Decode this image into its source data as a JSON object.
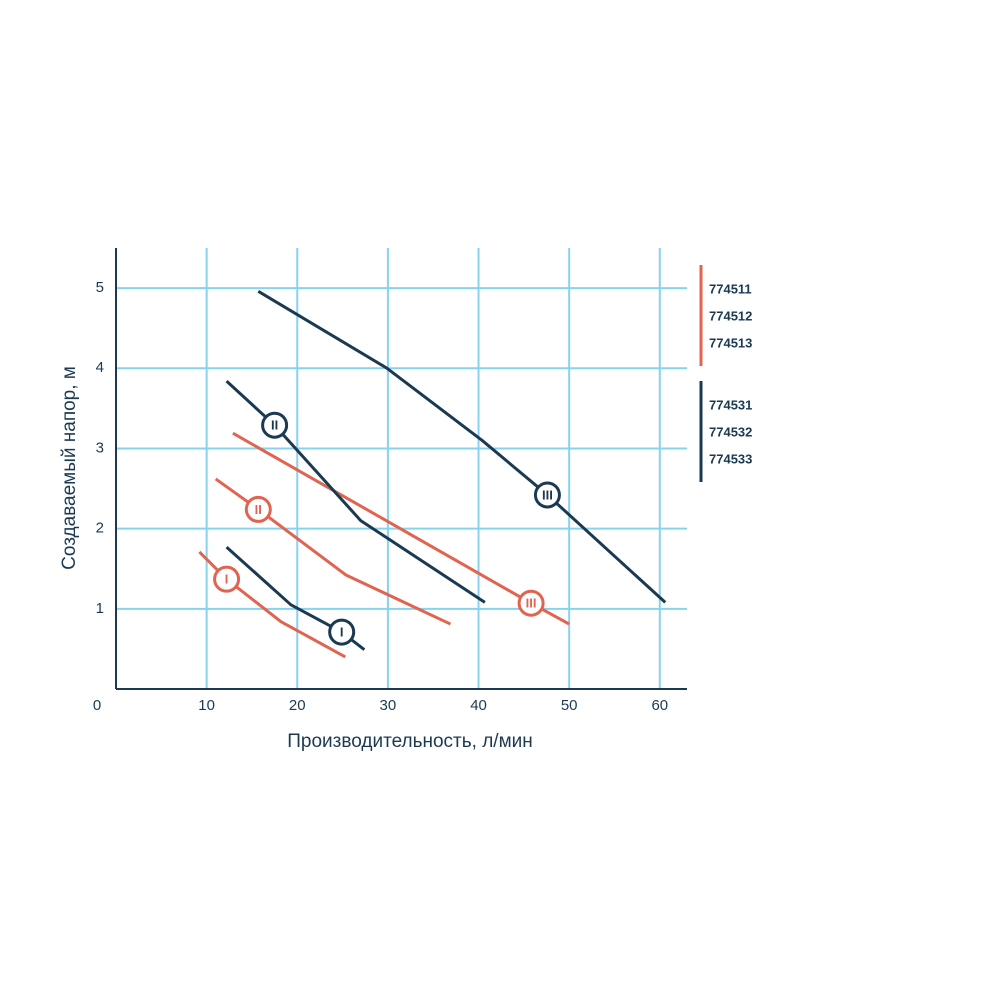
{
  "chart_data": {
    "type": "line",
    "x_label": "Производительность, л/мин",
    "y_label": "Создаваемый напор, м",
    "xlim": [
      0,
      63
    ],
    "ylim": [
      0,
      5.5
    ],
    "xticks": [
      0,
      10,
      20,
      30,
      40,
      50,
      60
    ],
    "yticks": [
      1,
      2,
      3,
      4,
      5
    ],
    "grid": true,
    "grid_color": "#86d3ef",
    "axis_color": "#1b3a52",
    "series": [
      {
        "name": "774511",
        "label": "I",
        "color": "#e0644f",
        "x": [
          9.2,
          12.2,
          18.2,
          25.3
        ],
        "values": [
          1.71,
          1.37,
          0.84,
          0.4
        ]
      },
      {
        "name": "774512",
        "label": "II",
        "color": "#e0644f",
        "x": [
          11.0,
          15.7,
          25.4,
          36.9
        ],
        "values": [
          2.62,
          2.24,
          1.42,
          0.81
        ]
      },
      {
        "name": "774513",
        "label": "III",
        "color": "#e0644f",
        "x": [
          12.9,
          45.8,
          50.0
        ],
        "values": [
          3.19,
          1.07,
          0.81
        ]
      },
      {
        "name": "774531",
        "label": "I",
        "color": "#1b3a52",
        "x": [
          12.2,
          19.3,
          24.9,
          27.4
        ],
        "values": [
          1.77,
          1.05,
          0.71,
          0.49
        ]
      },
      {
        "name": "774532",
        "label": "II",
        "color": "#1b3a52",
        "x": [
          12.2,
          17.5,
          27.0,
          40.7
        ],
        "values": [
          3.84,
          3.29,
          2.1,
          1.08
        ]
      },
      {
        "name": "774533",
        "label": "III",
        "color": "#1b3a52",
        "x": [
          15.7,
          29.9,
          40.4,
          47.6,
          60.6
        ],
        "values": [
          4.96,
          4.0,
          3.1,
          2.42,
          1.08
        ]
      }
    ]
  }
}
